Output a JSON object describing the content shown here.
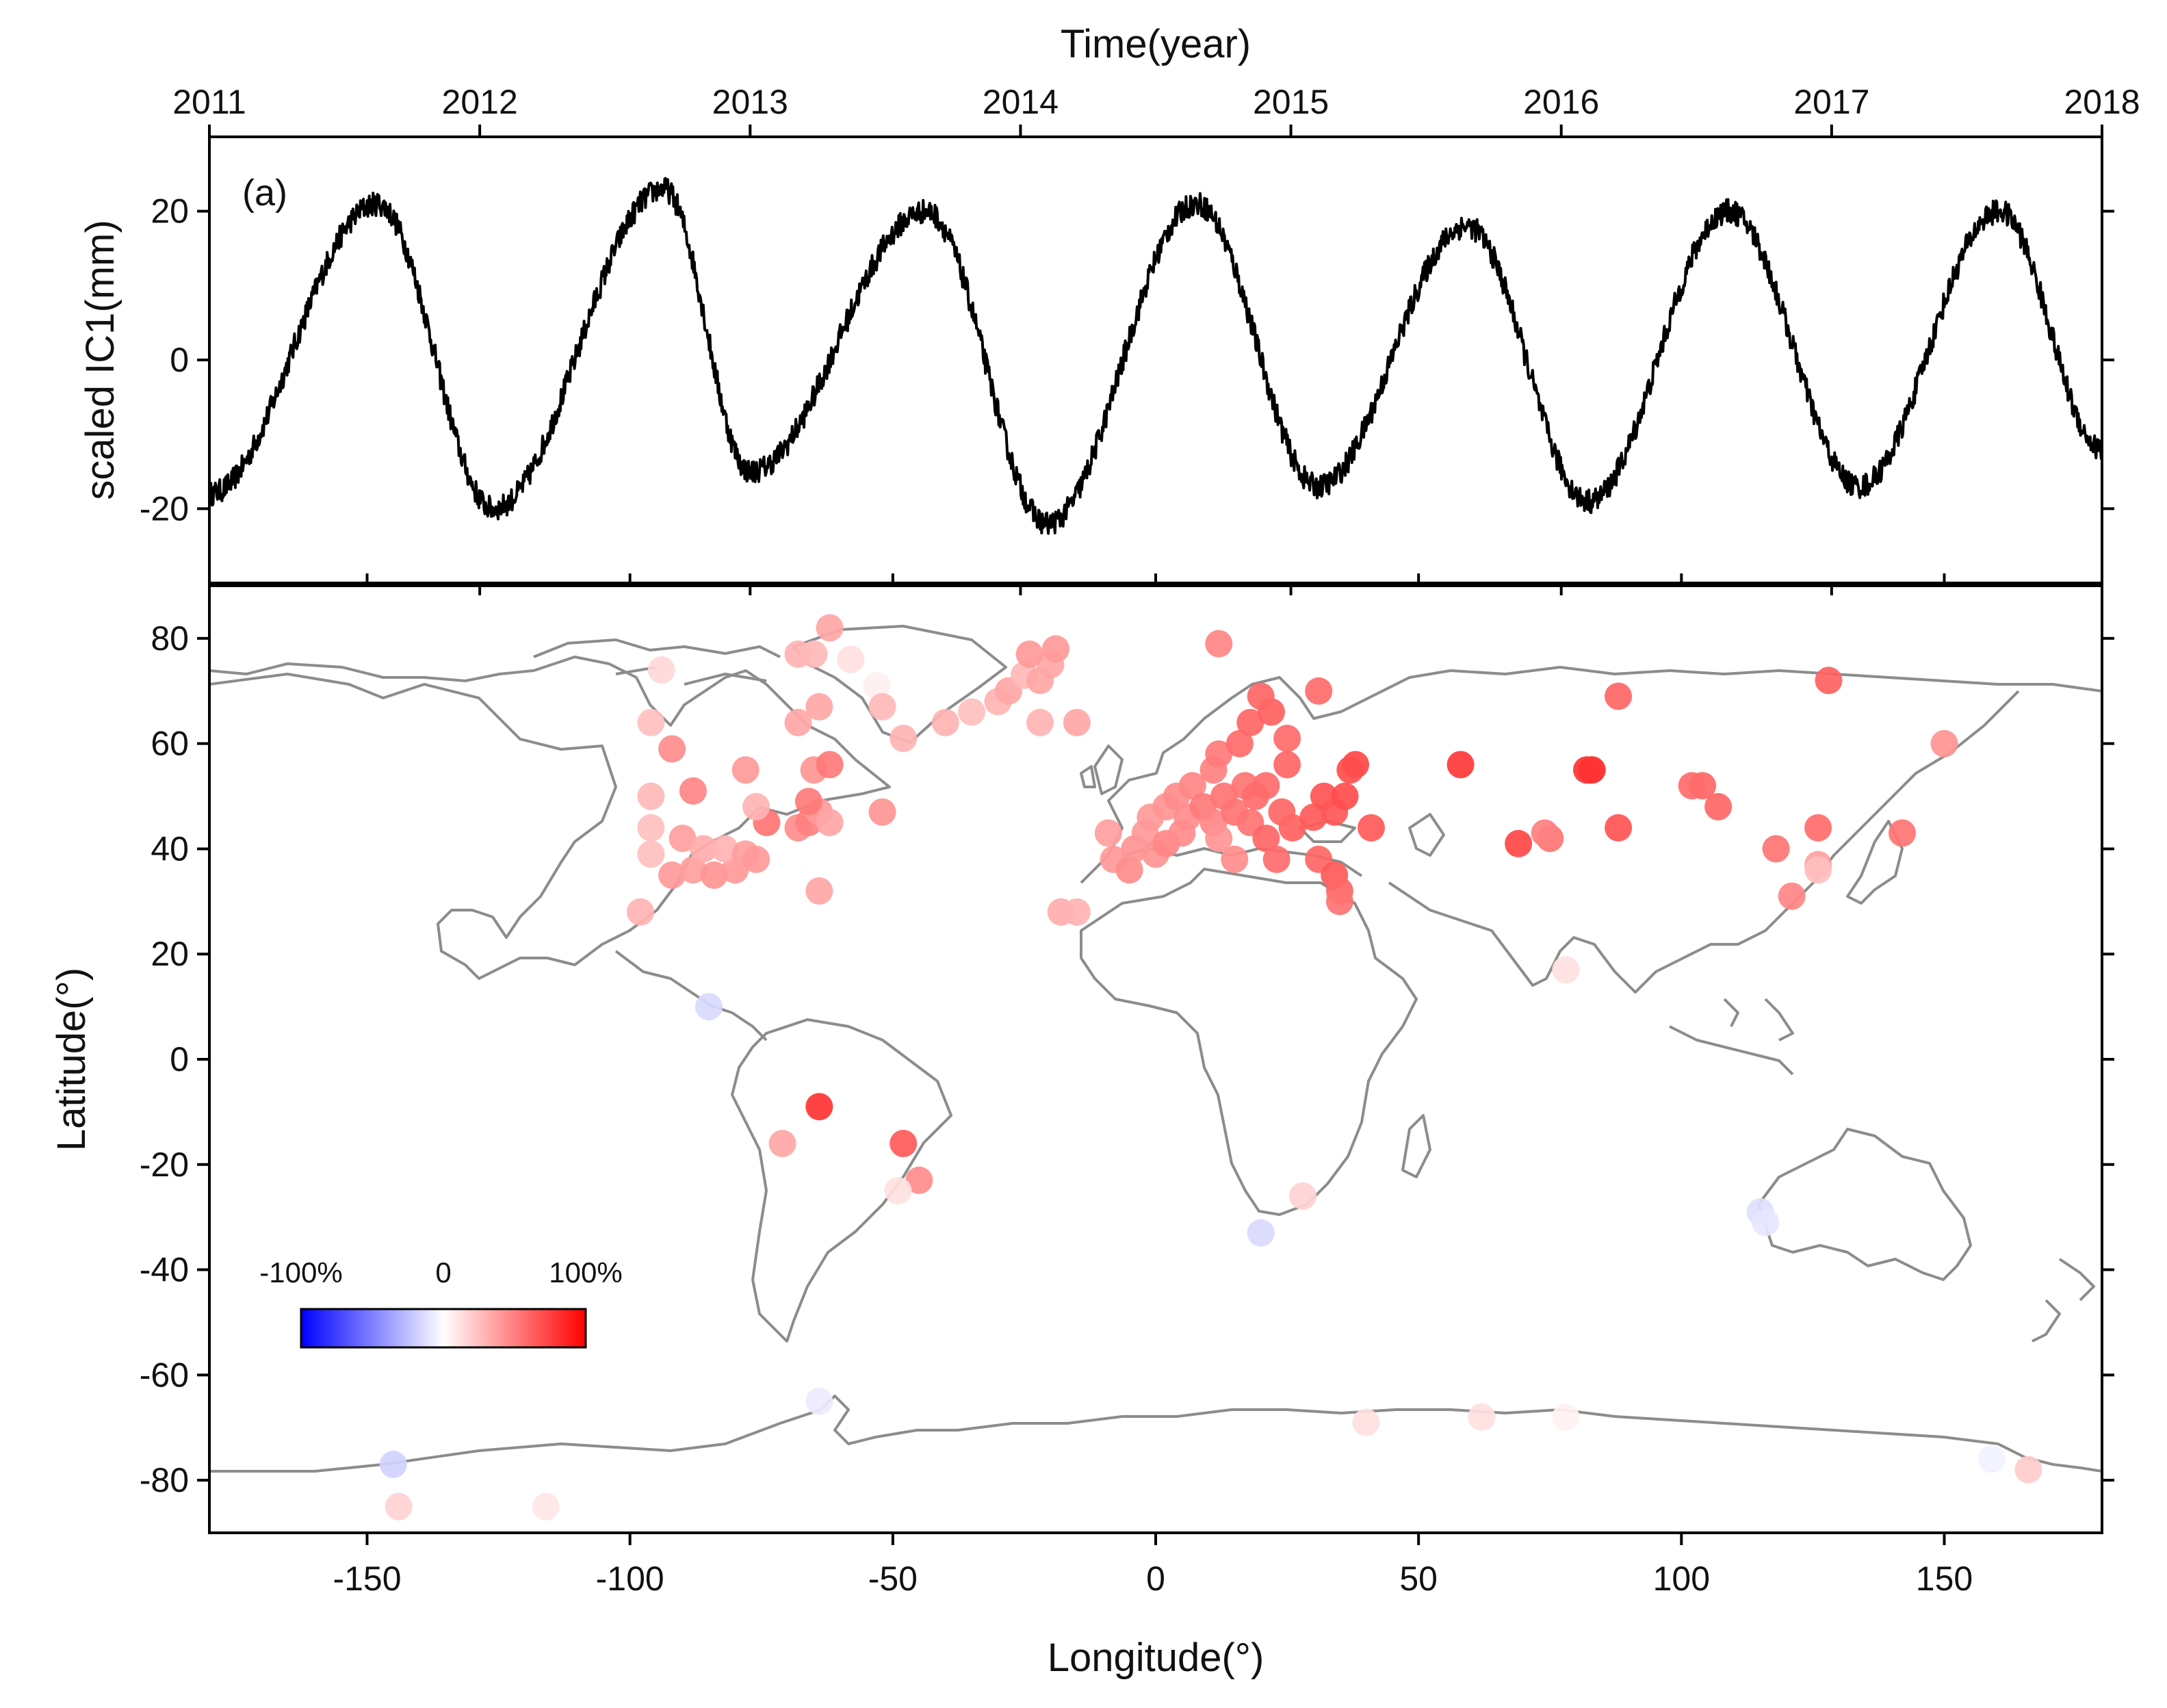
{
  "chart_data": [
    {
      "panel": "(a)",
      "type": "line",
      "title": "",
      "xlabel": "Time(year)",
      "ylabel": "scaled IC1(mm)",
      "xlim": [
        2011,
        2018
      ],
      "ylim": [
        -30,
        30
      ],
      "xticks": [
        2011,
        2012,
        2013,
        2014,
        2015,
        2016,
        2017,
        2018
      ],
      "xtick_labels": [
        "2011",
        "2012",
        "2013",
        "2014",
        "2015",
        "2016",
        "2017",
        "2018"
      ],
      "yticks": [
        -20,
        0,
        20
      ],
      "ytick_labels": [
        "-20",
        "0",
        "20"
      ],
      "series": [
        {
          "name": "scaled IC1",
          "color": "#000000",
          "description": "near-sinusoidal annual signal with daily noise",
          "peaks": [
            [
              2011.62,
              21
            ],
            [
              2012.68,
              23
            ],
            [
              2013.65,
              20
            ],
            [
              2014.65,
              21
            ],
            [
              2015.65,
              18
            ],
            [
              2016.62,
              20
            ],
            [
              2017.62,
              20
            ]
          ],
          "troughs": [
            [
              2011.0,
              -18
            ],
            [
              2012.05,
              -20
            ],
            [
              2013.0,
              -15
            ],
            [
              2014.1,
              -22
            ],
            [
              2015.1,
              -17
            ],
            [
              2016.1,
              -19
            ],
            [
              2017.1,
              -17
            ],
            [
              2018.0,
              -12
            ]
          ]
        }
      ]
    },
    {
      "type": "scatter",
      "title": "",
      "xlabel": "Longitude(°)",
      "ylabel": "Latitude(°)",
      "xlim": [
        -180,
        180
      ],
      "ylim": [
        -90,
        90
      ],
      "xticks": [
        -150,
        -100,
        -50,
        0,
        50,
        100,
        150
      ],
      "xtick_labels": [
        "-150",
        "-100",
        "-50",
        "0",
        "50",
        "100",
        "150"
      ],
      "yticks": [
        -80,
        -60,
        -40,
        -20,
        0,
        20,
        40,
        60,
        80
      ],
      "ytick_labels": [
        "-80",
        "-60",
        "-40",
        "-20",
        "0",
        "20",
        "40",
        "60",
        "80"
      ],
      "basemap": "world coastlines",
      "colorbar": {
        "labels": [
          "-100%",
          "0",
          "100%"
        ],
        "min": -100,
        "max": 100,
        "colors": [
          "#0000ff",
          "#ffffff",
          "#ff0000"
        ],
        "placement": "lower-left"
      },
      "points": [
        {
          "lon": -85,
          "lat": 10,
          "v": -15
        },
        {
          "lon": -64,
          "lat": -9,
          "v": 80
        },
        {
          "lon": -71,
          "lat": -16,
          "v": 35
        },
        {
          "lon": -48,
          "lat": -16,
          "v": 65
        },
        {
          "lon": -45,
          "lat": -23,
          "v": 45
        },
        {
          "lon": -49,
          "lat": -25,
          "v": 12
        },
        {
          "lon": -98,
          "lat": 28,
          "v": 30
        },
        {
          "lon": -64,
          "lat": 32,
          "v": 35
        },
        {
          "lon": -62,
          "lat": 82,
          "v": 35
        },
        {
          "lon": -94,
          "lat": 74,
          "v": 15
        },
        {
          "lon": -96,
          "lat": 64,
          "v": 25
        },
        {
          "lon": -92,
          "lat": 59,
          "v": 45
        },
        {
          "lon": -96,
          "lat": 50,
          "v": 28
        },
        {
          "lon": -88,
          "lat": 51,
          "v": 48
        },
        {
          "lon": -96,
          "lat": 44,
          "v": 25
        },
        {
          "lon": -96,
          "lat": 39,
          "v": 25
        },
        {
          "lon": -92,
          "lat": 35,
          "v": 40
        },
        {
          "lon": -88,
          "lat": 36,
          "v": 38
        },
        {
          "lon": -84,
          "lat": 35,
          "v": 42
        },
        {
          "lon": -80,
          "lat": 36,
          "v": 40
        },
        {
          "lon": -90,
          "lat": 42,
          "v": 38
        },
        {
          "lon": -86,
          "lat": 40,
          "v": 32
        },
        {
          "lon": -82,
          "lat": 40,
          "v": 30
        },
        {
          "lon": -78,
          "lat": 39,
          "v": 38
        },
        {
          "lon": -76,
          "lat": 38,
          "v": 40
        },
        {
          "lon": -74,
          "lat": 45,
          "v": 55
        },
        {
          "lon": -76,
          "lat": 48,
          "v": 30
        },
        {
          "lon": -78,
          "lat": 55,
          "v": 40
        },
        {
          "lon": -68,
          "lat": 44,
          "v": 45
        },
        {
          "lon": -66,
          "lat": 45,
          "v": 50
        },
        {
          "lon": -64,
          "lat": 47,
          "v": 40
        },
        {
          "lon": -62,
          "lat": 45,
          "v": 35
        },
        {
          "lon": -66,
          "lat": 49,
          "v": 52
        },
        {
          "lon": -65,
          "lat": 55,
          "v": 42
        },
        {
          "lon": -62,
          "lat": 56,
          "v": 52
        },
        {
          "lon": -68,
          "lat": 64,
          "v": 35
        },
        {
          "lon": -64,
          "lat": 67,
          "v": 35
        },
        {
          "lon": -68,
          "lat": 77,
          "v": 30
        },
        {
          "lon": -65,
          "lat": 77,
          "v": 28
        },
        {
          "lon": -58,
          "lat": 76,
          "v": 12
        },
        {
          "lon": -53,
          "lat": 71,
          "v": 6
        },
        {
          "lon": -52,
          "lat": 67,
          "v": 28
        },
        {
          "lon": -48,
          "lat": 61,
          "v": 30
        },
        {
          "lon": -52,
          "lat": 47,
          "v": 42
        },
        {
          "lon": -40,
          "lat": 64,
          "v": 30
        },
        {
          "lon": -35,
          "lat": 66,
          "v": 25
        },
        {
          "lon": -30,
          "lat": 68,
          "v": 30
        },
        {
          "lon": -28,
          "lat": 70,
          "v": 35
        },
        {
          "lon": -25,
          "lat": 73,
          "v": 28
        },
        {
          "lon": -22,
          "lat": 72,
          "v": 35
        },
        {
          "lon": -20,
          "lat": 75,
          "v": 35
        },
        {
          "lon": -24,
          "lat": 77,
          "v": 40
        },
        {
          "lon": -19,
          "lat": 78,
          "v": 40
        },
        {
          "lon": -22,
          "lat": 64,
          "v": 30
        },
        {
          "lon": -15,
          "lat": 64,
          "v": 35
        },
        {
          "lon": -18,
          "lat": 28,
          "v": 32
        },
        {
          "lon": -15,
          "lat": 28,
          "v": 30
        },
        {
          "lon": -8,
          "lat": 38,
          "v": 40
        },
        {
          "lon": -5,
          "lat": 36,
          "v": 45
        },
        {
          "lon": -4,
          "lat": 40,
          "v": 42
        },
        {
          "lon": -9,
          "lat": 43,
          "v": 38
        },
        {
          "lon": -2,
          "lat": 43,
          "v": 40
        },
        {
          "lon": 0,
          "lat": 39,
          "v": 42
        },
        {
          "lon": 2,
          "lat": 41,
          "v": 48
        },
        {
          "lon": 5,
          "lat": 43,
          "v": 45
        },
        {
          "lon": -1,
          "lat": 46,
          "v": 40
        },
        {
          "lon": 2,
          "lat": 48,
          "v": 42
        },
        {
          "lon": 4,
          "lat": 50,
          "v": 45
        },
        {
          "lon": 7,
          "lat": 52,
          "v": 48
        },
        {
          "lon": 6,
          "lat": 46,
          "v": 45
        },
        {
          "lon": 9,
          "lat": 48,
          "v": 52
        },
        {
          "lon": 11,
          "lat": 45,
          "v": 48
        },
        {
          "lon": 13,
          "lat": 50,
          "v": 55
        },
        {
          "lon": 15,
          "lat": 47,
          "v": 55
        },
        {
          "lon": 12,
          "lat": 42,
          "v": 42
        },
        {
          "lon": 15,
          "lat": 38,
          "v": 45
        },
        {
          "lon": 17,
          "lat": 52,
          "v": 55
        },
        {
          "lon": 19,
          "lat": 50,
          "v": 58
        },
        {
          "lon": 21,
          "lat": 52,
          "v": 58
        },
        {
          "lon": 18,
          "lat": 45,
          "v": 55
        },
        {
          "lon": 21,
          "lat": 42,
          "v": 60
        },
        {
          "lon": 23,
          "lat": 38,
          "v": 58
        },
        {
          "lon": 26,
          "lat": 44,
          "v": 62
        },
        {
          "lon": 24,
          "lat": 47,
          "v": 60
        },
        {
          "lon": 11,
          "lat": 55,
          "v": 50
        },
        {
          "lon": 12,
          "lat": 58,
          "v": 52
        },
        {
          "lon": 16,
          "lat": 60,
          "v": 58
        },
        {
          "lon": 18,
          "lat": 64,
          "v": 60
        },
        {
          "lon": 22,
          "lat": 66,
          "v": 62
        },
        {
          "lon": 20,
          "lat": 69,
          "v": 60
        },
        {
          "lon": 25,
          "lat": 61,
          "v": 58
        },
        {
          "lon": 25,
          "lat": 56,
          "v": 60
        },
        {
          "lon": 31,
          "lat": 70,
          "v": 58
        },
        {
          "lon": 12,
          "lat": 79,
          "v": 48
        },
        {
          "lon": 30,
          "lat": 46,
          "v": 65
        },
        {
          "lon": 32,
          "lat": 50,
          "v": 68
        },
        {
          "lon": 34,
          "lat": 47,
          "v": 66
        },
        {
          "lon": 36,
          "lat": 50,
          "v": 70
        },
        {
          "lon": 38,
          "lat": 56,
          "v": 72
        },
        {
          "lon": 37,
          "lat": 55,
          "v": 70
        },
        {
          "lon": 31,
          "lat": 38,
          "v": 60
        },
        {
          "lon": 34,
          "lat": 35,
          "v": 65
        },
        {
          "lon": 35,
          "lat": 32,
          "v": 60
        },
        {
          "lon": 35,
          "lat": 30,
          "v": 55
        },
        {
          "lon": 41,
          "lat": 44,
          "v": 65
        },
        {
          "lon": 58,
          "lat": 56,
          "v": 78
        },
        {
          "lon": 69,
          "lat": 41,
          "v": 72
        },
        {
          "lon": 75,
          "lat": 42,
          "v": 55
        },
        {
          "lon": 74,
          "lat": 43,
          "v": 50
        },
        {
          "lon": 83,
          "lat": 55,
          "v": 85
        },
        {
          "lon": 82,
          "lat": 55,
          "v": 80
        },
        {
          "lon": 88,
          "lat": 44,
          "v": 68
        },
        {
          "lon": 88,
          "lat": 69,
          "v": 60
        },
        {
          "lon": 104,
          "lat": 52,
          "v": 60
        },
        {
          "lon": 102,
          "lat": 52,
          "v": 58
        },
        {
          "lon": 107,
          "lat": 48,
          "v": 60
        },
        {
          "lon": 118,
          "lat": 40,
          "v": 55
        },
        {
          "lon": 126,
          "lat": 44,
          "v": 58
        },
        {
          "lon": 128,
          "lat": 72,
          "v": 62
        },
        {
          "lon": 142,
          "lat": 43,
          "v": 55
        },
        {
          "lon": 150,
          "lat": 60,
          "v": 42
        },
        {
          "lon": 126,
          "lat": 37,
          "v": 38
        },
        {
          "lon": 126,
          "lat": 36,
          "v": 25
        },
        {
          "lon": 121,
          "lat": 31,
          "v": 48
        },
        {
          "lon": 78,
          "lat": 17,
          "v": 12
        },
        {
          "lon": 20,
          "lat": -33,
          "v": -15
        },
        {
          "lon": 28,
          "lat": -26,
          "v": 18
        },
        {
          "lon": 115,
          "lat": -29,
          "v": -12
        },
        {
          "lon": 116,
          "lat": -31,
          "v": -10
        },
        {
          "lon": -64,
          "lat": -65,
          "v": -8
        },
        {
          "lon": -145,
          "lat": -77,
          "v": -18
        },
        {
          "lon": -144,
          "lat": -85,
          "v": 18
        },
        {
          "lon": -116,
          "lat": -85,
          "v": 10
        },
        {
          "lon": 40,
          "lat": -69,
          "v": 12
        },
        {
          "lon": 62,
          "lat": -68,
          "v": 12
        },
        {
          "lon": 78,
          "lat": -68,
          "v": 5
        },
        {
          "lon": 159,
          "lat": -76,
          "v": -5
        },
        {
          "lon": 166,
          "lat": -78,
          "v": 20
        }
      ]
    }
  ]
}
